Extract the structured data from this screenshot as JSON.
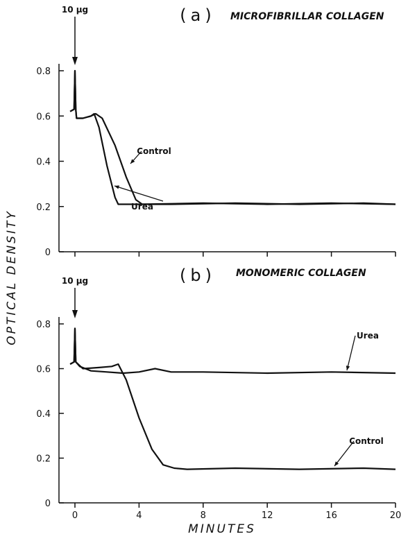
{
  "ylabel": "OPTICAL DENSITY",
  "xlabel": "MINUTES",
  "chart_data": [
    {
      "type": "line",
      "panel_label": "(a)",
      "title": "MICROFIBRILLAR COLLAGEN",
      "annotation": "10 μg",
      "xlim": [
        -1,
        20
      ],
      "xticks": [
        0,
        4,
        8,
        12,
        16,
        20
      ],
      "ylim": [
        0,
        0.8
      ],
      "yticks": [
        0,
        0.2,
        0.4,
        0.6,
        0.8
      ],
      "series": [
        {
          "name": "Control",
          "color": "#111",
          "x": [
            -0.3,
            -0.05,
            0,
            0.05,
            0.1,
            0.5,
            1,
            1.2,
            1.5,
            2,
            2.5,
            2.7,
            3,
            6,
            10,
            14,
            18,
            20
          ],
          "values": [
            0.62,
            0.63,
            0.8,
            0.63,
            0.59,
            0.59,
            0.6,
            0.61,
            0.55,
            0.38,
            0.24,
            0.21,
            0.21,
            0.21,
            0.215,
            0.21,
            0.215,
            0.21
          ]
        },
        {
          "name": "Urea",
          "color": "#111",
          "x": [
            -0.3,
            -0.05,
            0,
            0.05,
            0.1,
            0.5,
            1,
            1.3,
            1.7,
            2.5,
            3.2,
            3.8,
            4.2,
            8,
            12,
            16,
            20
          ],
          "values": [
            0.62,
            0.63,
            0.8,
            0.63,
            0.59,
            0.59,
            0.6,
            0.61,
            0.59,
            0.47,
            0.33,
            0.23,
            0.21,
            0.215,
            0.21,
            0.215,
            0.21
          ]
        }
      ]
    },
    {
      "type": "line",
      "panel_label": "(b)",
      "title": "MONOMERIC COLLAGEN",
      "annotation": "10 μg",
      "xlim": [
        -1,
        20
      ],
      "xticks": [
        0,
        4,
        8,
        12,
        16,
        20
      ],
      "ylim": [
        0,
        0.8
      ],
      "yticks": [
        0,
        0.2,
        0.4,
        0.6,
        0.8
      ],
      "series": [
        {
          "name": "Urea",
          "color": "#111",
          "x": [
            -0.3,
            -0.05,
            0,
            0.05,
            0.3,
            1,
            2,
            3,
            4,
            5,
            6,
            8,
            12,
            16,
            20
          ],
          "values": [
            0.62,
            0.63,
            0.78,
            0.63,
            0.61,
            0.59,
            0.585,
            0.58,
            0.585,
            0.6,
            0.585,
            0.585,
            0.58,
            0.585,
            0.58
          ]
        },
        {
          "name": "Control",
          "color": "#111",
          "x": [
            -0.3,
            -0.05,
            0,
            0.05,
            0.5,
            1.5,
            2.3,
            2.7,
            3.2,
            4,
            4.8,
            5.5,
            6.2,
            7,
            10,
            14,
            18,
            20
          ],
          "values": [
            0.62,
            0.63,
            0.78,
            0.63,
            0.6,
            0.605,
            0.61,
            0.62,
            0.55,
            0.38,
            0.24,
            0.17,
            0.155,
            0.15,
            0.155,
            0.15,
            0.155,
            0.15
          ]
        }
      ]
    }
  ]
}
